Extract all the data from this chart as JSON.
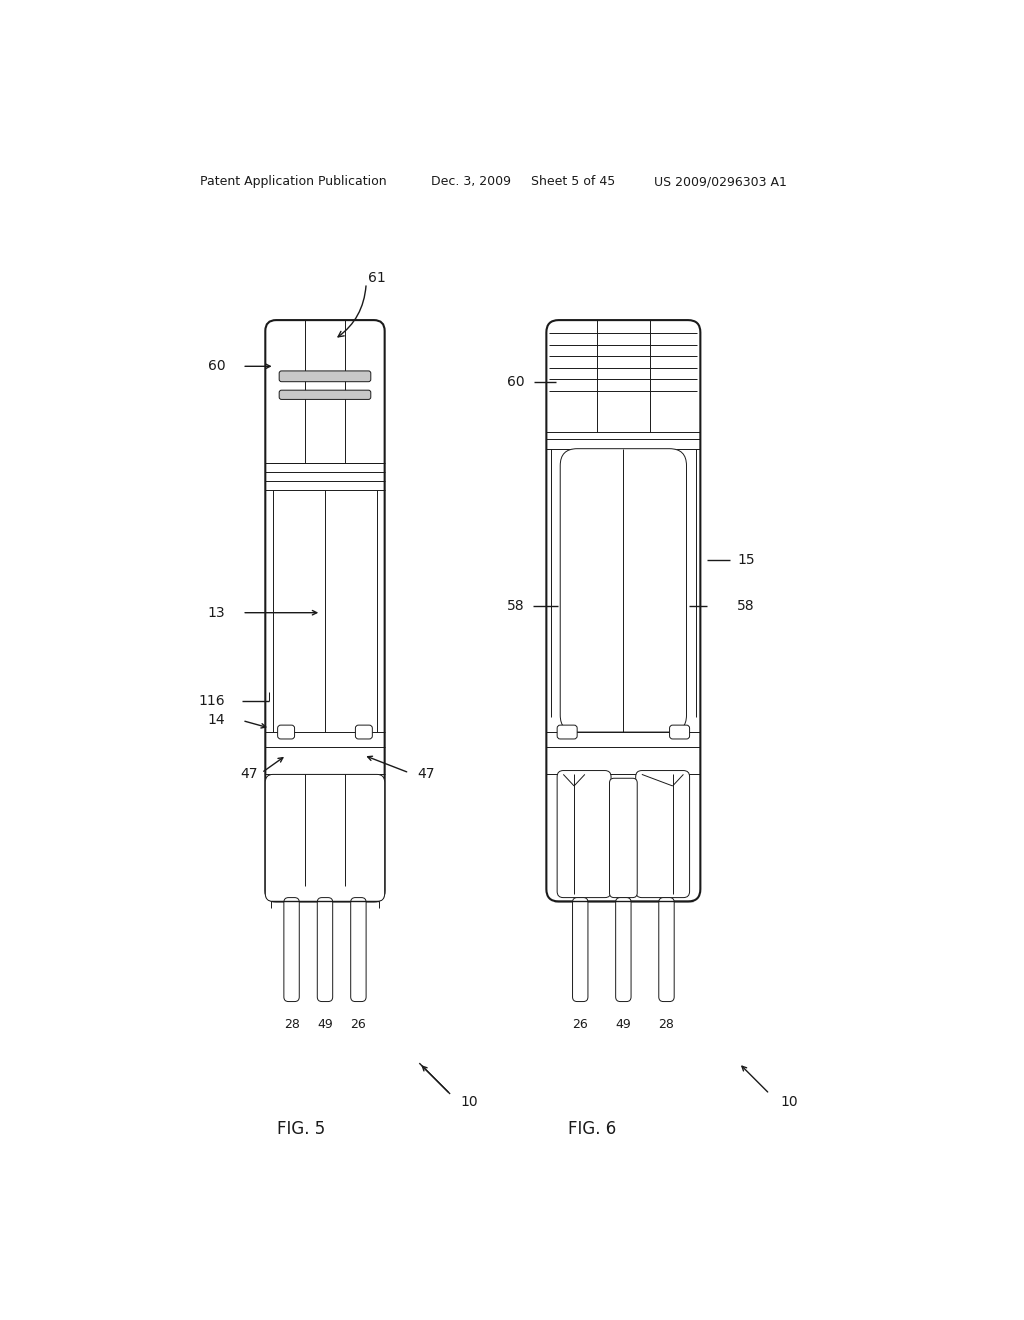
{
  "bg_color": "#ffffff",
  "line_color": "#1a1a1a",
  "header_text": "Patent Application Publication",
  "header_date": "Dec. 3, 2009",
  "header_sheet": "Sheet 5 of 45",
  "header_patent": "US 2009/0296303 A1",
  "fig5_label": "FIG. 5",
  "fig6_label": "FIG. 6",
  "lw": 1.0,
  "lw_thick": 1.5,
  "lw_thin": 0.7
}
